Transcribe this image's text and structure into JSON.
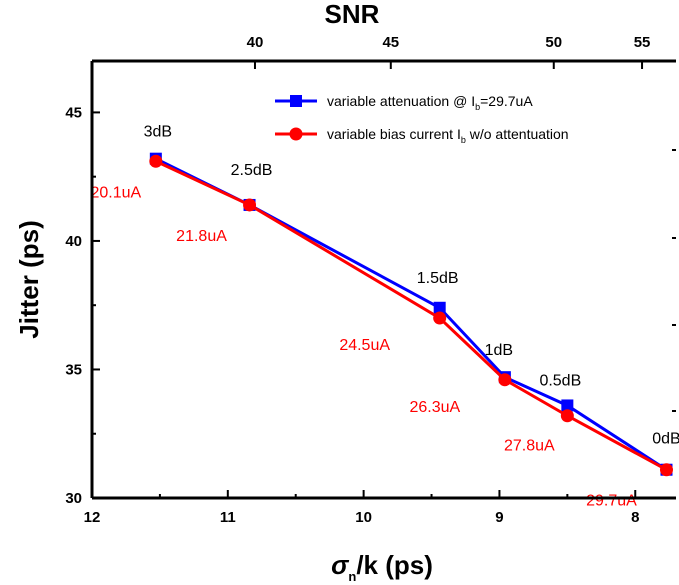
{
  "chart_data": {
    "type": "line",
    "title": "SNR",
    "xlabel": "σ",
    "xlabel_sub": "n",
    "xlabel_suffix": "/k (ps)",
    "ylabel": "Jitter (ps)",
    "xlim": [
      12,
      7.7
    ],
    "ylim": [
      30,
      47
    ],
    "x_ticks": [
      "12",
      "11",
      "10",
      "9",
      "8"
    ],
    "y_ticks": [
      "30",
      "35",
      "40",
      "45"
    ],
    "top_axis": {
      "label": "SNR",
      "ticks": [
        {
          "label": "40",
          "x": 10.8
        },
        {
          "label": "45",
          "x": 9.8
        },
        {
          "label": "50",
          "x": 8.6
        },
        {
          "label": "55",
          "x": 7.95
        }
      ]
    },
    "legend": {
      "position": "top-right",
      "entries": [
        {
          "text": "variable attenuation @ I",
          "sub": "b",
          "suffix": "=29.7uA",
          "color": "#0000ff",
          "marker": "square"
        },
        {
          "text": "variable bias current I",
          "sub": "b",
          "suffix": " w/o attentuation",
          "color": "#ff0000",
          "marker": "circle"
        }
      ]
    },
    "series": [
      {
        "color": "#0000ff",
        "marker": "square",
        "points": [
          {
            "x": 11.53,
            "y": 43.2
          },
          {
            "x": 10.84,
            "y": 41.4
          },
          {
            "x": 9.44,
            "y": 37.4
          },
          {
            "x": 8.96,
            "y": 34.7
          },
          {
            "x": 8.5,
            "y": 33.6
          },
          {
            "x": 7.77,
            "y": 31.1
          }
        ],
        "labels": [
          "3dB",
          "2.5dB",
          "1.5dB",
          "1dB",
          "0.5dB",
          "0dB"
        ]
      },
      {
        "color": "#ff0000",
        "marker": "circle",
        "points": [
          {
            "x": 11.53,
            "y": 43.1
          },
          {
            "x": 10.84,
            "y": 41.4
          },
          {
            "x": 9.44,
            "y": 37.0
          },
          {
            "x": 8.96,
            "y": 34.6
          },
          {
            "x": 8.5,
            "y": 33.2
          },
          {
            "x": 7.77,
            "y": 31.1
          }
        ],
        "labels": [
          "20.1uA",
          "21.8uA",
          "24.5uA",
          "26.3uA",
          "27.8uA",
          "29.7uA"
        ]
      }
    ]
  }
}
